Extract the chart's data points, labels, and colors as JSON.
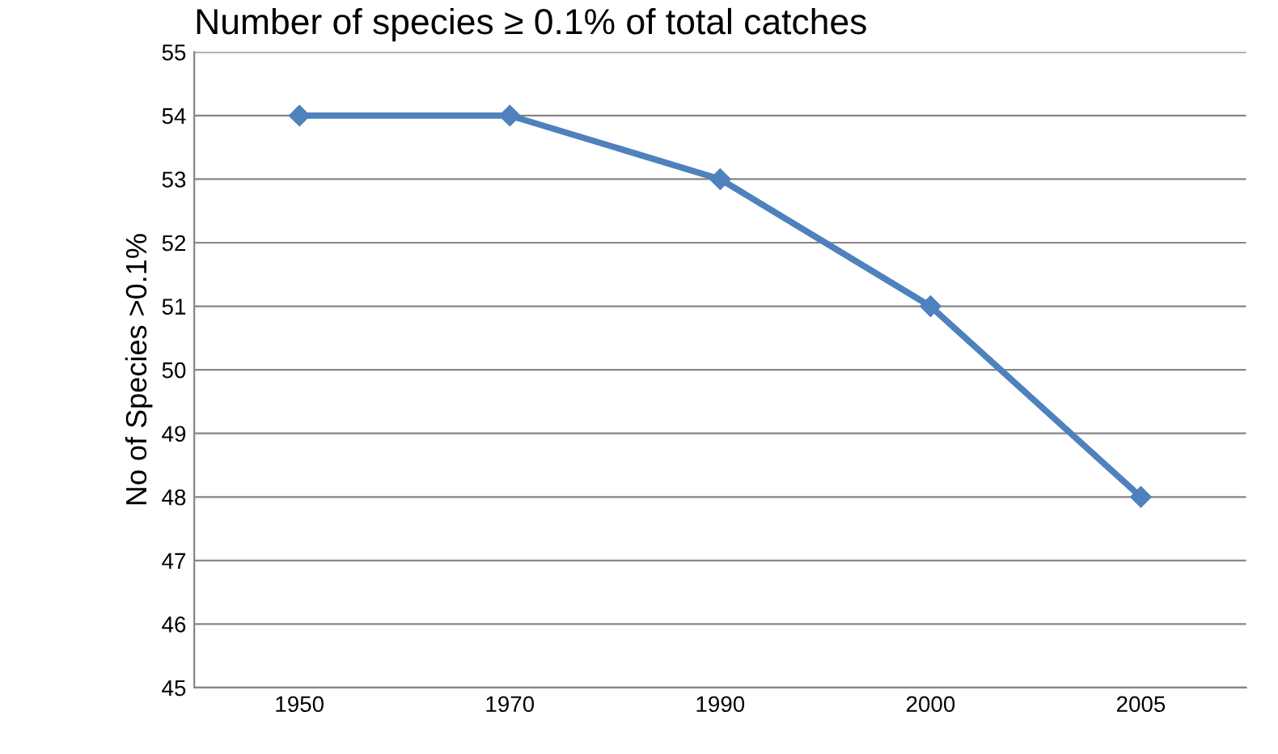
{
  "chart_data": {
    "type": "line",
    "title": "Number of species ≥ 0.1% of total catches",
    "ylabel": "No of Species >0.1%",
    "categories": [
      "1950",
      "1970",
      "1990",
      "2000",
      "2005"
    ],
    "series": [
      {
        "color": "#4f81bd",
        "values": [
          54,
          54,
          53,
          51,
          48
        ]
      }
    ],
    "ylim": [
      45,
      55
    ],
    "yticks": [
      45,
      46,
      47,
      48,
      49,
      50,
      51,
      52,
      53,
      54,
      55
    ],
    "grid": "y",
    "marker": "diamond",
    "line_style": "solid",
    "legend": false
  }
}
